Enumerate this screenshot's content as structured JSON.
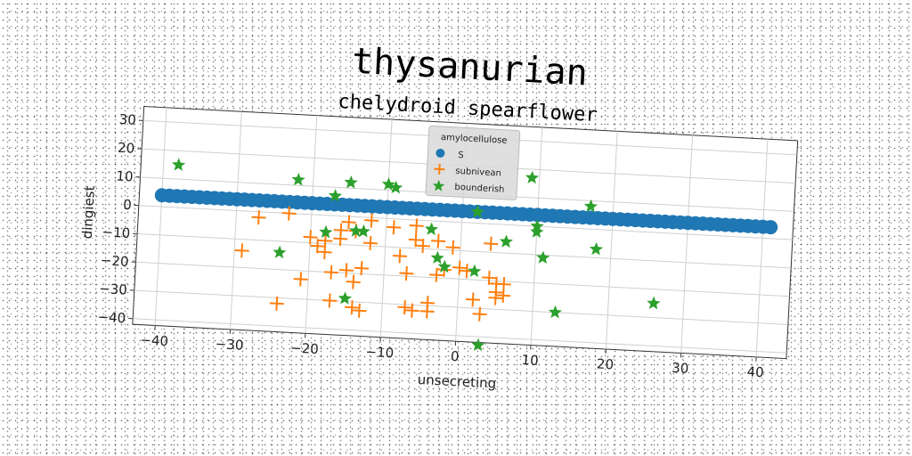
{
  "chart_data": {
    "type": "scatter",
    "title": "thysanurian",
    "subtitle": "chelydroid spearflower",
    "xlabel": "unsecreting",
    "ylabel": "dingiest",
    "xlim": [
      -43,
      44
    ],
    "ylim": [
      -42,
      35
    ],
    "xticks": [
      -40,
      -30,
      -20,
      -10,
      0,
      10,
      20,
      30,
      40
    ],
    "yticks": [
      -40,
      -30,
      -20,
      -10,
      0,
      10,
      20,
      30
    ],
    "grid": true,
    "legend": {
      "title": "amylocellulose",
      "placement": "top-center"
    },
    "series": [
      {
        "name": "S",
        "marker": "circle",
        "color": "#1f77b4",
        "x": [
          -40,
          -39,
          -38,
          -37,
          -36,
          -35,
          -34,
          -33,
          -32,
          -31,
          -30,
          -29,
          -28,
          -27,
          -26,
          -25,
          -24,
          -23,
          -22,
          -21,
          -20,
          -19,
          -18,
          -17,
          -16,
          -15,
          -14,
          -13,
          -12,
          -11,
          -10,
          -9,
          -8,
          -7,
          -6,
          -5,
          -4,
          -3,
          -2,
          -1,
          0,
          1,
          2,
          3,
          4,
          5,
          6,
          7,
          8,
          9,
          10,
          11,
          12,
          13,
          14,
          15,
          16,
          17,
          18,
          19,
          20,
          21,
          22,
          23,
          24,
          25,
          26,
          27,
          28,
          29,
          30,
          31,
          32,
          33,
          34,
          35,
          36,
          37,
          38,
          39,
          40,
          41
        ],
        "y": [
          4,
          4,
          4,
          4,
          4,
          4,
          4,
          4,
          4,
          4,
          4,
          4,
          4,
          4,
          4,
          4,
          4,
          4,
          4,
          4,
          4,
          4,
          4,
          4,
          4,
          4,
          4,
          4,
          4,
          4,
          4,
          4,
          4,
          4,
          4,
          4,
          4,
          4,
          4,
          4,
          4,
          4,
          4,
          4,
          4,
          4,
          4,
          4,
          4,
          4,
          4,
          4,
          4,
          4,
          4,
          4,
          4,
          4,
          4,
          4,
          4,
          4,
          4,
          4,
          4,
          4,
          4,
          4,
          4,
          4,
          4,
          4,
          4,
          4,
          4,
          4,
          4,
          4,
          4,
          4,
          4,
          4
        ]
      },
      {
        "name": "subnivean",
        "marker": "plus",
        "color": "#ff7f0e",
        "x": [
          -29,
          -27,
          -24,
          -23,
          -21,
          -20,
          -19,
          -18,
          -17,
          -17,
          -16,
          -16,
          -15,
          -15,
          -14,
          -14,
          -14,
          -13,
          -12,
          -12,
          -9,
          -8,
          -7,
          -7,
          -6,
          -6,
          -6,
          -5,
          -4,
          -4,
          -3,
          -3,
          -2,
          -1,
          0,
          1,
          2,
          3,
          4,
          4,
          5,
          5,
          5,
          6,
          6,
          -18,
          -13
        ],
        "y": [
          -14,
          -2,
          -32,
          0,
          -23,
          -8,
          -11,
          -9,
          -20,
          -30,
          -5,
          -8,
          -2,
          -19,
          -5,
          -23,
          -32,
          -33,
          -9,
          -1,
          -3,
          -13,
          -19,
          -31,
          -2,
          -7,
          -32,
          -9,
          -29,
          -32,
          -7,
          -19,
          -17,
          -9,
          -16,
          -17,
          -27,
          -32,
          -7,
          -19,
          -24,
          -26,
          -21,
          -25,
          -21,
          -13,
          -18
        ]
      },
      {
        "name": "bounderish",
        "marker": "star",
        "color": "#2ca02c",
        "x": [
          -38,
          -24,
          -22,
          -18,
          -17,
          -15,
          -15,
          -14,
          -13,
          -10,
          -9,
          -4,
          -3,
          -2,
          2,
          2,
          3,
          6,
          9,
          10,
          10,
          11,
          17,
          18,
          26,
          13
        ],
        "y": [
          15,
          -14,
          12,
          -6,
          7,
          12,
          -29,
          -5,
          -5,
          12,
          11,
          -3,
          -13,
          -16,
          4,
          -17,
          -43,
          -6,
          17,
          0,
          -2,
          -11,
          8,
          -7,
          -25,
          -30
        ]
      }
    ]
  }
}
